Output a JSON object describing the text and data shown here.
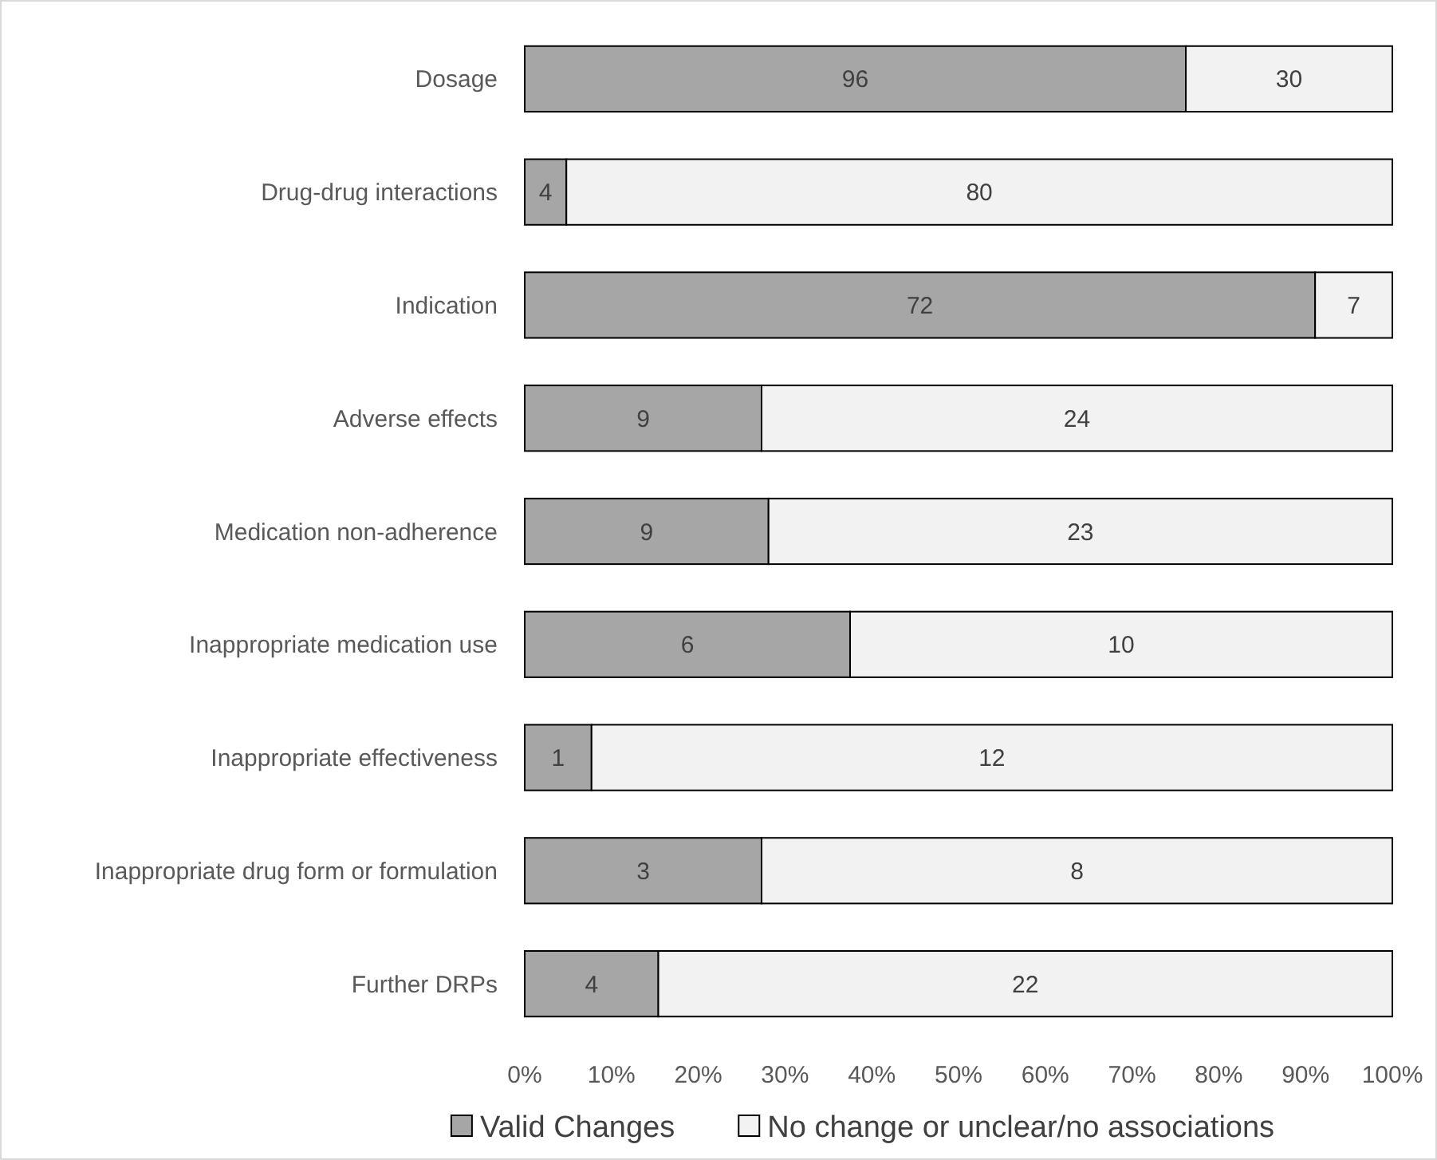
{
  "chart_data": {
    "type": "bar",
    "orientation": "horizontal",
    "stacked": true,
    "categories": [
      "Dosage",
      "Drug-drug interactions",
      "Indication",
      "Adverse effects",
      "Medication non-adherence",
      "Inappropriate medication use",
      "Inappropriate effectiveness",
      "Inappropriate drug form or formulation",
      "Further DRPs"
    ],
    "series": [
      {
        "name": "Valid Changes",
        "color": "#a6a6a6",
        "values": [
          76.2,
          4.8,
          91.1,
          27.3,
          28.1,
          37.5,
          7.7,
          27.3,
          15.4
        ]
      },
      {
        "name": "No change or unclear/no associations",
        "color": "#f2f2f2",
        "values": [
          23.8,
          95.2,
          8.9,
          72.7,
          71.9,
          62.5,
          92.3,
          72.7,
          84.6
        ]
      }
    ],
    "xlim": [
      0,
      100
    ],
    "xticks": [
      {
        "value": 0,
        "label": "0%"
      },
      {
        "value": 10,
        "label": "10%"
      },
      {
        "value": 20,
        "label": "20%"
      },
      {
        "value": 30,
        "label": "30%"
      },
      {
        "value": 40,
        "label": "40%"
      },
      {
        "value": 50,
        "label": "50%"
      },
      {
        "value": 60,
        "label": "60%"
      },
      {
        "value": 70,
        "label": "70%"
      },
      {
        "value": 80,
        "label": "80%"
      },
      {
        "value": 90,
        "label": "90%"
      },
      {
        "value": 100,
        "label": "100%"
      }
    ],
    "annotations": [
      "96",
      "30",
      "4",
      "80",
      "72",
      "7",
      "9",
      "24",
      "9",
      "23",
      "6",
      "10",
      "1",
      "12",
      "3",
      "8",
      "4",
      "22"
    ],
    "legend": "bottom"
  }
}
